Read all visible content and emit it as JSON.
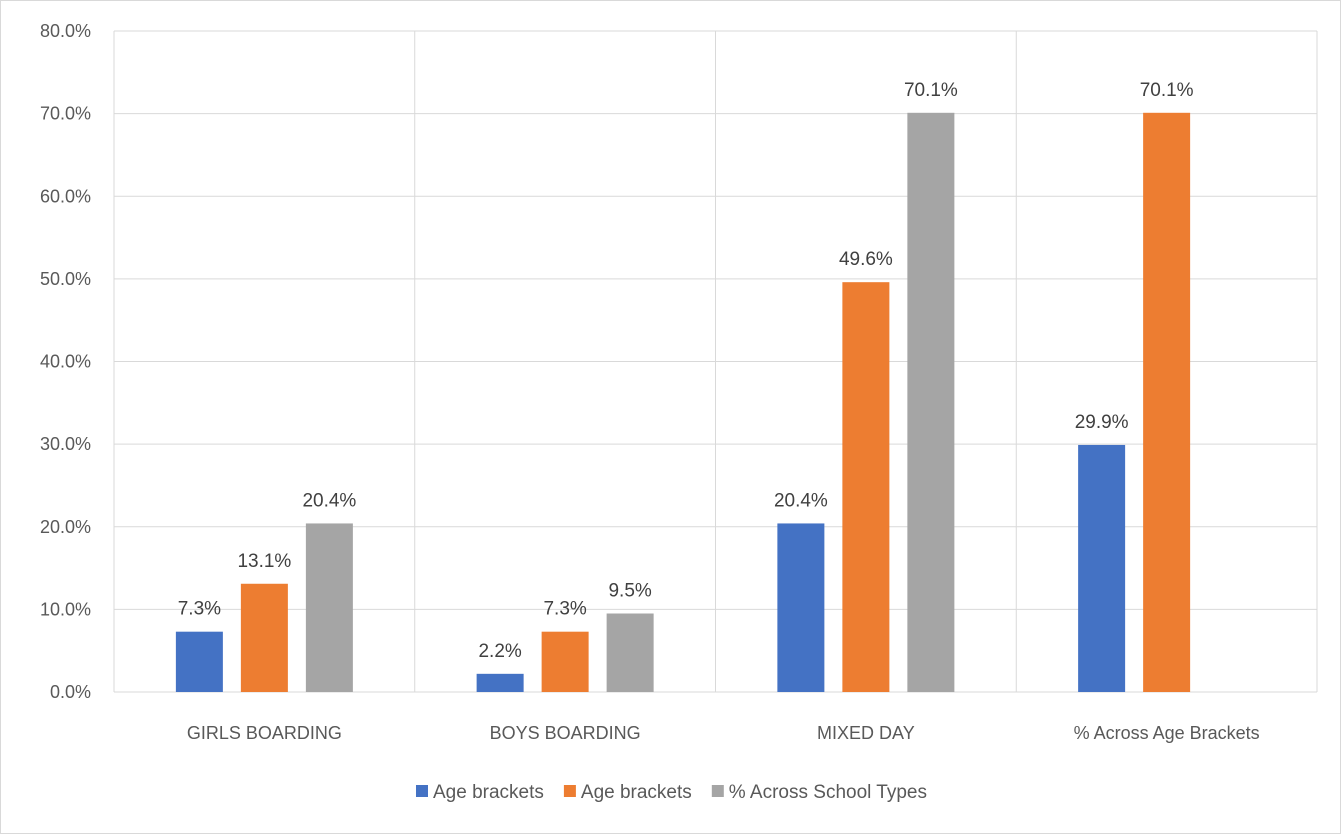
{
  "chart_data": {
    "type": "bar",
    "categories": [
      "GIRLS BOARDING",
      "BOYS BOARDING",
      "MIXED DAY",
      "% Across Age Brackets"
    ],
    "series": [
      {
        "name": "Age brackets",
        "color": "#4472c4",
        "values": [
          7.3,
          2.2,
          20.4,
          29.9
        ],
        "labels": [
          "7.3%",
          "2.2%",
          "20.4%",
          "29.9%"
        ]
      },
      {
        "name": "Age brackets",
        "color": "#ed7d31",
        "values": [
          13.1,
          7.3,
          49.6,
          70.1
        ],
        "labels": [
          "13.1%",
          "7.3%",
          "49.6%",
          "70.1%"
        ]
      },
      {
        "name": "% Across School Types",
        "color": "#a5a5a5",
        "values": [
          20.4,
          9.5,
          70.1,
          null
        ],
        "labels": [
          "20.4%",
          "9.5%",
          "70.1%",
          null
        ]
      }
    ],
    "ylim": [
      0,
      80
    ],
    "yticks": [
      0,
      10,
      20,
      30,
      40,
      50,
      60,
      70,
      80
    ],
    "ytick_labels": [
      "0.0%",
      "10.0%",
      "20.0%",
      "30.0%",
      "40.0%",
      "50.0%",
      "60.0%",
      "70.0%",
      "80.0%"
    ],
    "grid": true,
    "legend_position": "bottom",
    "title": "",
    "xlabel": "",
    "ylabel": ""
  }
}
